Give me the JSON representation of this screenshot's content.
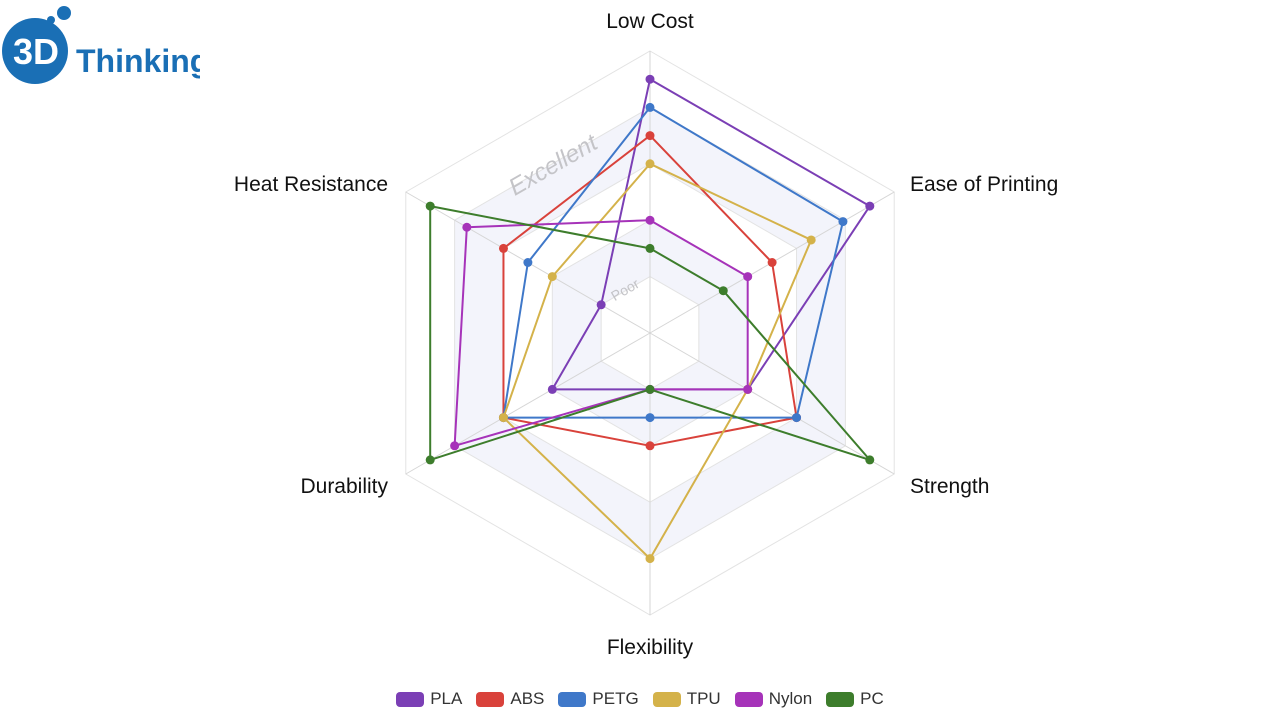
{
  "logo": {
    "badge_text": "3D",
    "word_text": "Thinking",
    "color": "#1a6fb5"
  },
  "chart_data": {
    "type": "radar",
    "axes": [
      "Low Cost",
      "Ease of Printing",
      "Strength",
      "Flexibility",
      "Durability",
      "Heat Resistance"
    ],
    "scale_labels": {
      "min_label": "Poor",
      "max_label": "Excellent"
    },
    "scale": {
      "min": 0,
      "max": 10,
      "rings": 5
    },
    "grid": true,
    "legend_position": "bottom",
    "series": [
      {
        "name": "PLA",
        "color": "#7b3fb5",
        "values": [
          9,
          9,
          4,
          2,
          4,
          2
        ]
      },
      {
        "name": "ABS",
        "color": "#d9423b",
        "values": [
          7,
          5,
          6,
          4,
          6,
          6
        ]
      },
      {
        "name": "PETG",
        "color": "#3f78c9",
        "values": [
          8,
          7.9,
          6,
          3,
          6,
          5
        ]
      },
      {
        "name": "TPU",
        "color": "#d4b24a",
        "values": [
          6,
          6.6,
          4,
          8,
          6,
          4
        ]
      },
      {
        "name": "Nylon",
        "color": "#a633b9",
        "values": [
          4,
          4,
          4,
          2,
          8,
          7.5
        ]
      },
      {
        "name": "PC",
        "color": "#3d7d2c",
        "values": [
          3,
          3,
          9,
          2,
          9,
          9
        ]
      }
    ]
  }
}
